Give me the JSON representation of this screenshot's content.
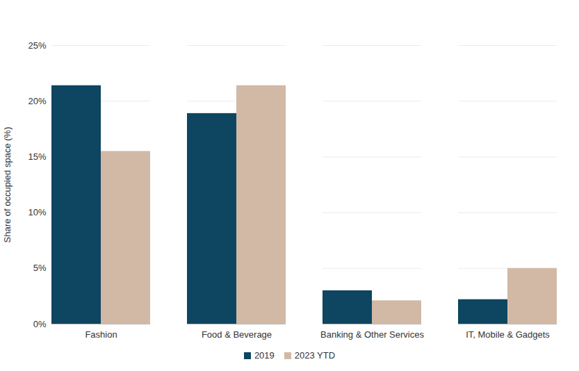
{
  "chart_data": {
    "type": "bar",
    "ylabel": "Share of occupied space (%)",
    "categories": [
      "Fashion",
      "Food & Beverage",
      "Banking & Other Services",
      "IT, Mobile & Gadgets"
    ],
    "series": [
      {
        "name": "2019",
        "color": "#0e4560",
        "values": [
          21.4,
          18.9,
          3.0,
          2.2
        ]
      },
      {
        "name": "2023 YTD",
        "color": "#d2b9a5",
        "values": [
          15.5,
          21.4,
          2.1,
          5.0
        ]
      }
    ],
    "ylim": [
      0,
      25
    ],
    "yticks": [
      {
        "value": 0,
        "label": "0%"
      },
      {
        "value": 5,
        "label": "5%"
      },
      {
        "value": 10,
        "label": "10%"
      },
      {
        "value": 15,
        "label": "15%"
      },
      {
        "value": 20,
        "label": "20%"
      },
      {
        "value": 25,
        "label": "25%"
      }
    ],
    "grid": true,
    "legend": "bottom"
  }
}
